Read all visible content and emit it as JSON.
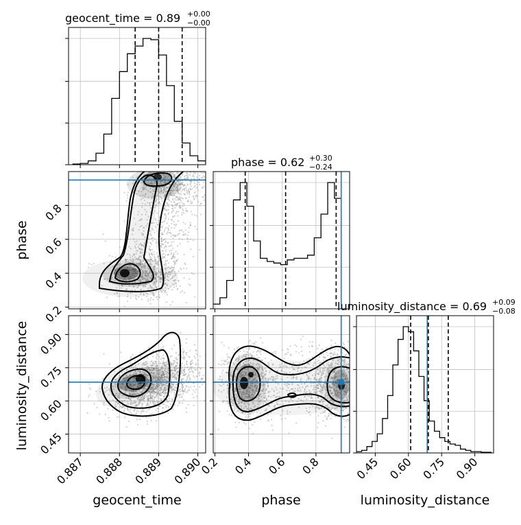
{
  "chart_data": {
    "type": "corner",
    "parameters": [
      "geocent_time",
      "phase",
      "luminosity_distance"
    ],
    "truths": {
      "phase": 0.95,
      "luminosity_distance": 0.685
    },
    "colors": {
      "hist": "#000000",
      "truth": "#1f77b4",
      "points": "#9a9a9a",
      "grid": "#c0c0c0"
    },
    "titles": [
      {
        "param": "geocent_time",
        "value": "0.89",
        "plus": "+0.00",
        "minus": "−0.00"
      },
      {
        "param": "phase",
        "value": "0.62",
        "plus": "+0.30",
        "minus": "−0.24"
      },
      {
        "param": "luminosity_distance",
        "value": "0.69",
        "plus": "+0.09",
        "minus": "−0.08"
      }
    ],
    "axes": {
      "geocent_time": {
        "range": [
          0.8867,
          0.8902
        ],
        "ticks": [
          0.887,
          0.888,
          0.889,
          0.89
        ],
        "tick_labels": [
          "0.887",
          "0.888",
          "0.889",
          "0.890"
        ],
        "label": "geocent_time"
      },
      "phase": {
        "range": [
          0.19,
          1.0
        ],
        "ticks": [
          0.2,
          0.4,
          0.6,
          0.8
        ],
        "tick_labels": [
          "0.2",
          "0.4",
          "0.6",
          "0.8"
        ],
        "label": "phase"
      },
      "luminosity_distance": {
        "range": [
          0.365,
          0.985
        ],
        "ticks": [
          0.45,
          0.6,
          0.75,
          0.9
        ],
        "tick_labels": [
          "0.45",
          "0.60",
          "0.75",
          "0.90"
        ],
        "label": "luminosity_distance"
      }
    },
    "histograms": {
      "geocent_time": {
        "bin_start": 0.8868,
        "bin_width": 0.0002,
        "counts": [
          0.5,
          1,
          3,
          9,
          24,
          52,
          73,
          87,
          93,
          99,
          98,
          86,
          62,
          34,
          17,
          7,
          3,
          1
        ],
        "quantiles": [
          0.8884,
          0.889,
          0.8896
        ]
      },
      "phase": {
        "bin_start": 0.19,
        "bin_width": 0.04,
        "counts": [
          3,
          7,
          18,
          69,
          80,
          65,
          43,
          32,
          30,
          29,
          28,
          31,
          32,
          32,
          34,
          45,
          60,
          80,
          70
        ],
        "quantiles": [
          0.38,
          0.62,
          0.92
        ]
      },
      "luminosity_distance": {
        "bin_start": 0.365,
        "bin_width": 0.0235,
        "counts": [
          1,
          2,
          5,
          9,
          15,
          27,
          45,
          69,
          89,
          99,
          95,
          80,
          60,
          41,
          25,
          17,
          12,
          9,
          7,
          6,
          3,
          2,
          1,
          1,
          0.5,
          0.5
        ],
        "quantiles": [
          0.61,
          0.69,
          0.78
        ]
      }
    }
  }
}
